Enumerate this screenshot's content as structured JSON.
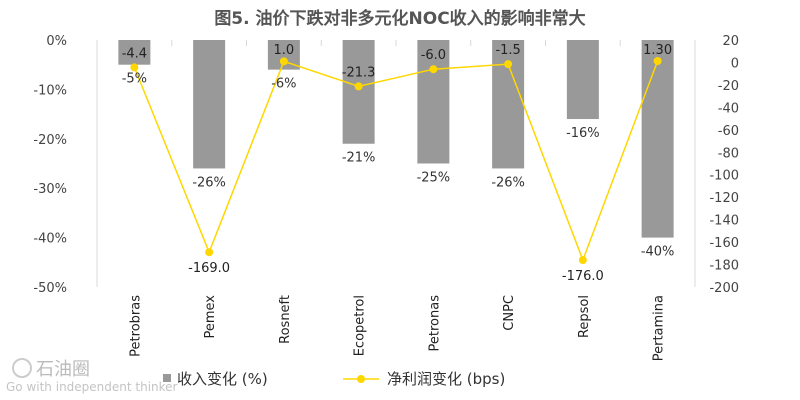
{
  "chart_data": {
    "type": "bar+line",
    "title": "图5. 油价下跌对非多元化NOC收入的影响非常大",
    "categories": [
      "Petrobras",
      "Pemex",
      "Rosneft",
      "Ecopetrol",
      "Petronas",
      "CNPC",
      "Repsol",
      "Pertamina"
    ],
    "series": [
      {
        "name": "收入变化 (%)",
        "type": "bar",
        "axis": "left",
        "color": "#999999",
        "values": [
          -5,
          -26,
          -6,
          -21,
          -25,
          -26,
          -16,
          -40
        ],
        "labels": [
          "-5%",
          "-26%",
          "-6%",
          "-21%",
          "-25%",
          "-26%",
          "-16%",
          "-40%"
        ]
      },
      {
        "name": "净利润变化 (bps)",
        "type": "line",
        "axis": "right",
        "color": "#FFD700",
        "values": [
          -4.4,
          -169.0,
          1.0,
          -21.3,
          -6.0,
          -1.5,
          -176.0,
          1.3
        ],
        "labels": [
          "-4.4",
          "-169.0",
          "1.0",
          "-21.3",
          "-6.0",
          "-1.5",
          "-176.0",
          "1.30"
        ]
      }
    ],
    "y_left": {
      "min": -50,
      "max": 0,
      "ticks": [
        0,
        -10,
        -20,
        -30,
        -40,
        -50
      ],
      "tick_labels": [
        "0%",
        "-10%",
        "-20%",
        "-30%",
        "-40%",
        "-50%"
      ]
    },
    "y_right": {
      "min": -200,
      "max": 20,
      "ticks": [
        20,
        0,
        -20,
        -40,
        -60,
        -80,
        -100,
        -120,
        -140,
        -160,
        -180,
        -200
      ],
      "tick_labels": [
        "20",
        "0",
        "-20",
        "-40",
        "-60",
        "-80",
        "-100",
        "-120",
        "-140",
        "-160",
        "-180",
        "-200"
      ]
    },
    "legend_position": "bottom",
    "grid": false
  },
  "watermark": {
    "text": "石油圈",
    "subtext": "Go with independent thinker"
  }
}
